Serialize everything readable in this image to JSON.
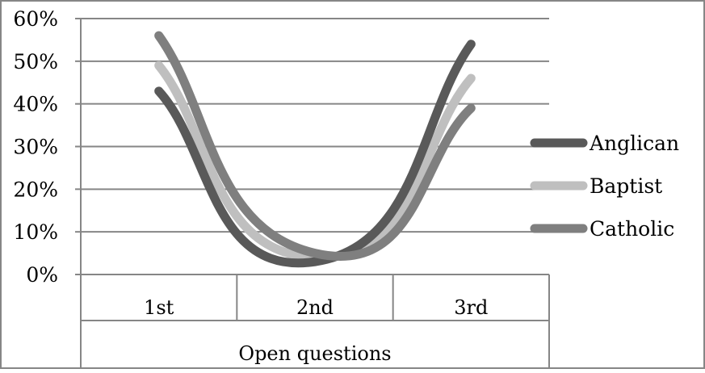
{
  "chart_data": {
    "type": "line",
    "categories": [
      "1st",
      "2nd",
      "3rd"
    ],
    "xlabel": "Open questions",
    "ylabel": "",
    "title": "",
    "ylim": [
      0,
      0.6
    ],
    "yticks": [
      "0%",
      "10%",
      "20%",
      "30%",
      "40%",
      "50%",
      "60%"
    ],
    "ytick_values": [
      0,
      0.1,
      0.2,
      0.3,
      0.4,
      0.5,
      0.6
    ],
    "grid": true,
    "smooth": true,
    "legend": "right",
    "series": [
      {
        "name": "Anglican",
        "values": [
          0.43,
          0.03,
          0.54
        ],
        "color": "#595959"
      },
      {
        "name": "Baptist",
        "values": [
          0.49,
          0.04,
          0.46
        ],
        "color": "#bfbfbf"
      },
      {
        "name": "Catholic",
        "values": [
          0.56,
          0.05,
          0.39
        ],
        "color": "#7f7f7f"
      }
    ]
  }
}
